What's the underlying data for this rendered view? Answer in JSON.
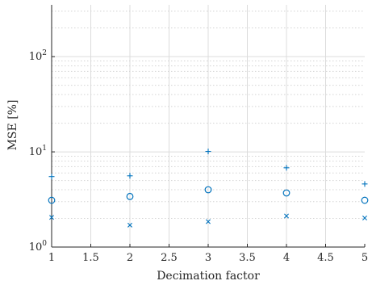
{
  "chart_data": {
    "type": "scatter",
    "title": "",
    "xlabel": "Decimation factor",
    "ylabel": "MSE [%]",
    "x_scale": "linear",
    "y_scale": "log",
    "xlim": [
      1,
      5
    ],
    "ylim": [
      1,
      350
    ],
    "x_ticks": [
      "1",
      "1.5",
      "2",
      "2.5",
      "3",
      "3.5",
      "4",
      "4.5",
      "5"
    ],
    "y_ticks": [
      {
        "value": 1,
        "base": "10",
        "exp": "0"
      },
      {
        "value": 10,
        "base": "10",
        "exp": "1"
      },
      {
        "value": 100,
        "base": "10",
        "exp": "2"
      }
    ],
    "grid": true,
    "legend": "none",
    "color": "#0072BD",
    "series": [
      {
        "marker": "plus",
        "x": [
          1,
          2,
          3,
          4,
          5
        ],
        "y": [
          5.5,
          5.6,
          10.1,
          6.8,
          4.6
        ]
      },
      {
        "marker": "circle",
        "x": [
          1,
          2,
          3,
          4,
          5
        ],
        "y": [
          3.1,
          3.4,
          4.0,
          3.7,
          3.1
        ]
      },
      {
        "marker": "cross",
        "x": [
          1,
          2,
          3,
          4,
          5
        ],
        "y": [
          2.05,
          1.7,
          1.85,
          2.12,
          2.02
        ]
      }
    ]
  }
}
